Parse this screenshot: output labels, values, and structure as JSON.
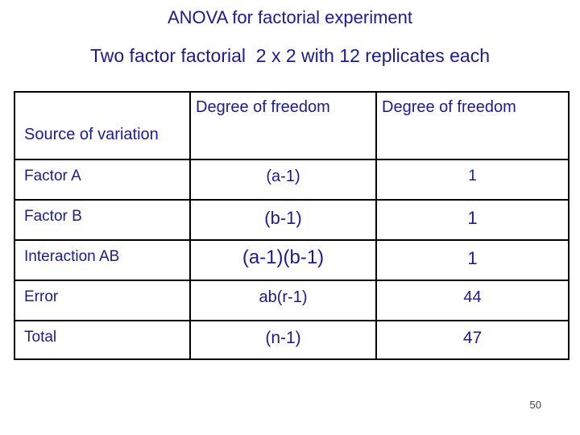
{
  "slide": {
    "title": "ANOVA for factorial experiment",
    "subtitle": "Two factor factorial  2 x 2 with 12 replicates each",
    "page_number": "50",
    "colors": {
      "text": "#1b1b94",
      "table_border": "#000000",
      "background": "#ffffff",
      "page_number": "#404040"
    }
  },
  "table": {
    "headers": {
      "source": "Source of variation",
      "df_formula": "Degree of freedom",
      "df_value": "Degree of freedom"
    },
    "rows": [
      {
        "source": "Factor A",
        "formula": "(a-1)",
        "value": "1"
      },
      {
        "source": "Factor B",
        "formula": "(b-1)",
        "value": "1"
      },
      {
        "source": "Interaction AB",
        "formula": "(a-1)(b-1)",
        "value": "1"
      },
      {
        "source": "Error",
        "formula": "ab(r-1)",
        "value": "44"
      },
      {
        "source": "Total",
        "formula": "(n-1)",
        "value": "47"
      }
    ]
  }
}
